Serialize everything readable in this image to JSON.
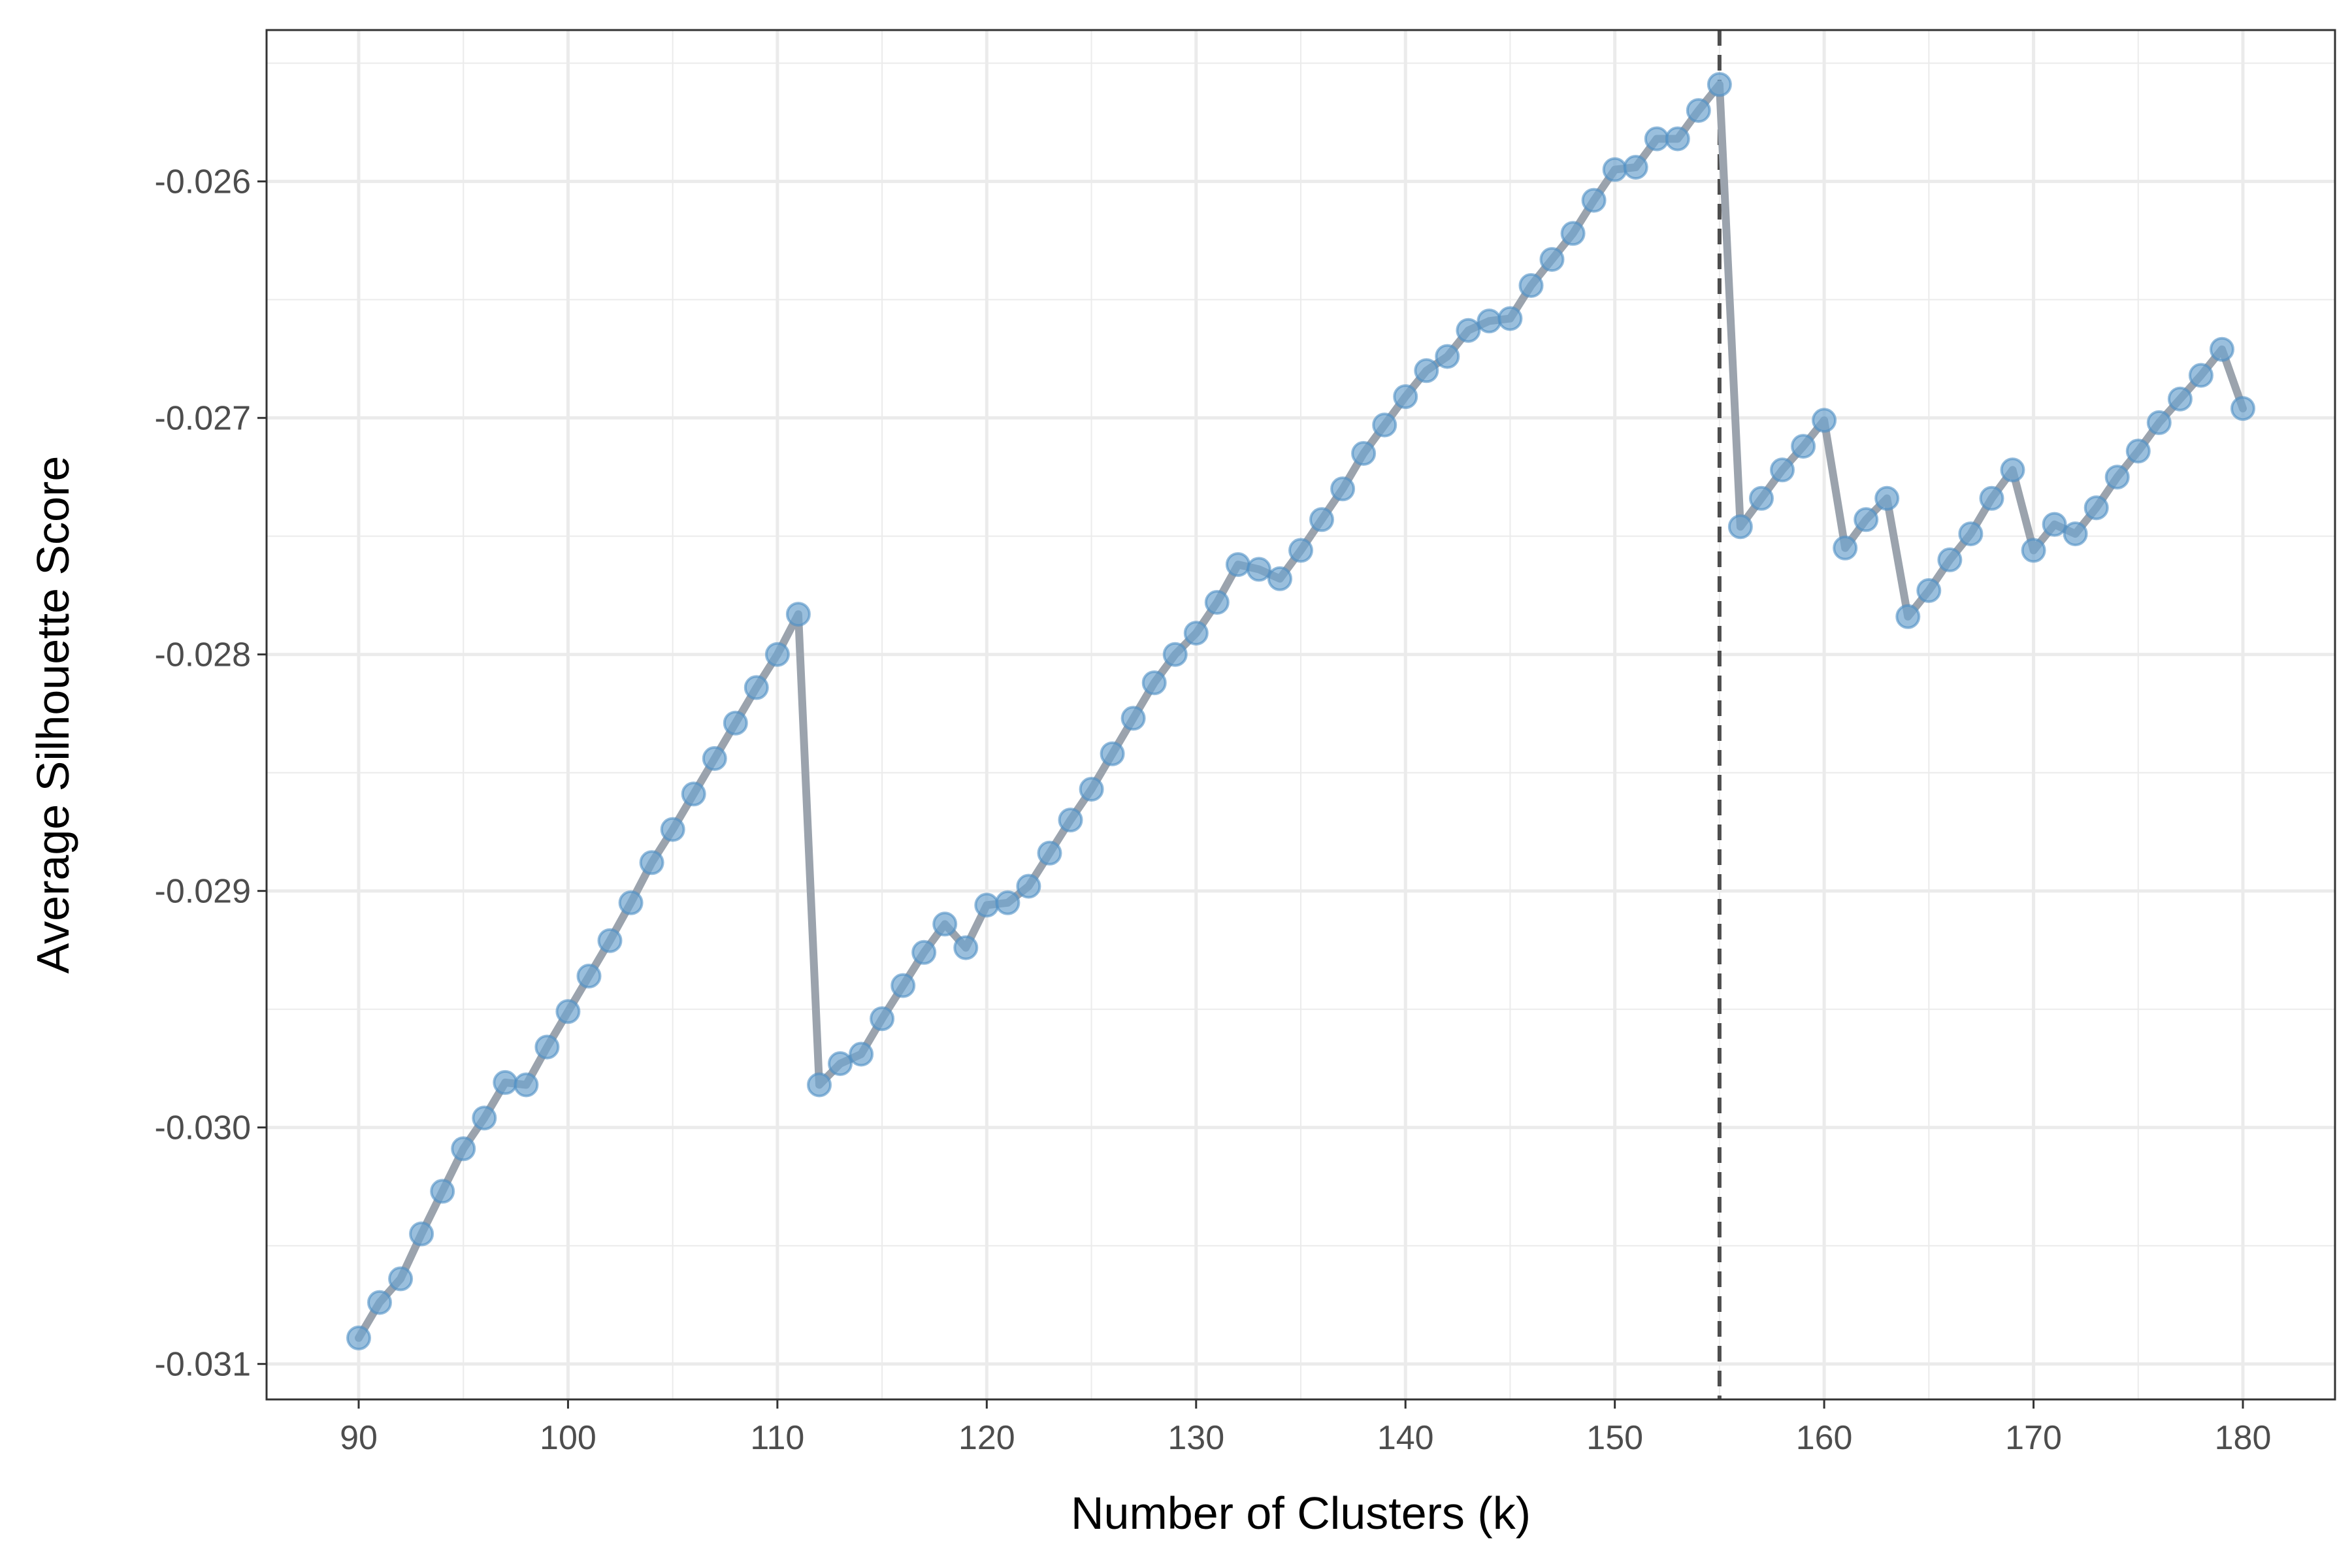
{
  "chart_data": {
    "type": "line",
    "title": "",
    "xlabel": "Number of Clusters (k)",
    "ylabel": "Average Silhouette Score",
    "xlim": [
      85.6,
      184.4
    ],
    "ylim": [
      -0.03115,
      -0.02536
    ],
    "x_ticks": [
      90,
      100,
      110,
      120,
      130,
      140,
      150,
      160,
      170,
      180
    ],
    "x_tick_labels": [
      "90",
      "100",
      "110",
      "120",
      "130",
      "140",
      "150",
      "160",
      "170",
      "180"
    ],
    "y_ticks": [
      -0.026,
      -0.027,
      -0.028,
      -0.029,
      -0.03,
      -0.031
    ],
    "y_tick_labels": [
      "-0.026",
      "-0.027",
      "-0.028",
      "-0.029",
      "-0.030",
      "-0.031"
    ],
    "grid": true,
    "reference_line": {
      "orientation": "vertical",
      "x": 155,
      "style": "dashed"
    },
    "colors": {
      "line": "#9ba3ad",
      "point": "#6fa4cf",
      "point_edge": "#4f8fc4",
      "ref_line": "#4d4d4d",
      "grid": "#ebebeb",
      "panel_border": "#333333"
    },
    "series": [
      {
        "x": [
          90,
          91,
          92,
          93,
          94,
          95,
          96,
          97,
          98,
          99,
          100,
          101,
          102,
          103,
          104,
          105,
          106,
          107,
          108,
          109,
          110,
          111,
          112,
          113,
          114,
          115,
          116,
          117,
          118,
          119,
          120,
          121,
          122,
          123,
          124,
          125,
          126,
          127,
          128,
          129,
          130,
          131,
          132,
          133,
          134,
          135,
          136,
          137,
          138,
          139,
          140,
          141,
          142,
          143,
          144,
          145,
          146,
          147,
          148,
          149,
          150,
          151,
          152,
          153,
          154,
          155,
          156,
          157,
          158,
          159,
          160,
          161,
          162,
          163,
          164,
          165,
          166,
          167,
          168,
          169,
          170,
          171,
          172,
          173,
          174,
          175,
          176,
          177,
          178,
          179,
          180
        ],
        "y": [
          -0.03089,
          -0.03074,
          -0.03064,
          -0.03045,
          -0.03027,
          -0.03009,
          -0.02996,
          -0.02981,
          -0.02982,
          -0.02966,
          -0.02951,
          -0.02936,
          -0.02921,
          -0.02905,
          -0.02888,
          -0.02874,
          -0.02859,
          -0.02844,
          -0.02829,
          -0.02814,
          -0.028,
          -0.02783,
          -0.02982,
          -0.02973,
          -0.02969,
          -0.02954,
          -0.0294,
          -0.02926,
          -0.02914,
          -0.02924,
          -0.02906,
          -0.02905,
          -0.02898,
          -0.02884,
          -0.0287,
          -0.02857,
          -0.02842,
          -0.02827,
          -0.02812,
          -0.028,
          -0.02791,
          -0.02778,
          -0.02762,
          -0.02764,
          -0.02768,
          -0.02756,
          -0.02743,
          -0.0273,
          -0.02715,
          -0.02703,
          -0.02691,
          -0.0268,
          -0.02674,
          -0.02663,
          -0.02659,
          -0.02658,
          -0.02644,
          -0.02633,
          -0.02622,
          -0.02608,
          -0.02595,
          -0.02594,
          -0.02582,
          -0.02582,
          -0.0257,
          -0.02559,
          -0.02746,
          -0.02734,
          -0.02722,
          -0.02712,
          -0.02701,
          -0.02755,
          -0.02743,
          -0.02734,
          -0.02784,
          -0.02773,
          -0.0276,
          -0.02749,
          -0.02734,
          -0.02722,
          -0.02756,
          -0.02745,
          -0.02749,
          -0.02738,
          -0.02725,
          -0.02714,
          -0.02702,
          -0.02692,
          -0.02682,
          -0.02671,
          -0.02696
        ]
      }
    ]
  }
}
